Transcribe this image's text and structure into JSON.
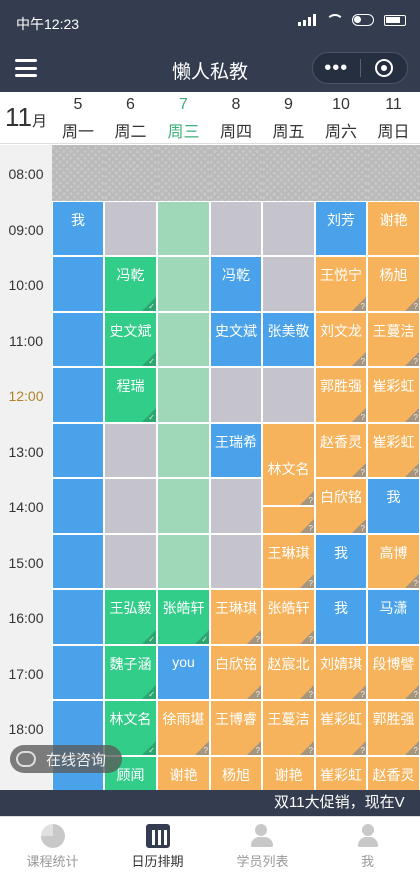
{
  "status": {
    "time": "中午12:23"
  },
  "nav": {
    "title": "懒人私教"
  },
  "header": {
    "month_num": "11",
    "month_unit": "月",
    "days": [
      {
        "num": "5",
        "wd": "周一",
        "today": false
      },
      {
        "num": "6",
        "wd": "周二",
        "today": false
      },
      {
        "num": "7",
        "wd": "周三",
        "today": true
      },
      {
        "num": "8",
        "wd": "周四",
        "today": false
      },
      {
        "num": "9",
        "wd": "周五",
        "today": false
      },
      {
        "num": "10",
        "wd": "周六",
        "today": false
      },
      {
        "num": "11",
        "wd": "周日",
        "today": false
      }
    ]
  },
  "times": [
    "08:00",
    "09:00",
    "10:00",
    "11:00",
    "12:00",
    "13:00",
    "14:00",
    "15:00",
    "16:00",
    "17:00",
    "18:00"
  ],
  "current_time_label": "12:00",
  "colors": {
    "blue": "#4aa3ea",
    "gray": "#c5c3cc",
    "green": "#33cd8a",
    "light_green": "#9fd8b9",
    "orange": "#f7b35b",
    "dark": "#333d4f"
  },
  "schedule": [
    {
      "day": 0,
      "cells": [
        {
          "c": "blue",
          "t": "我"
        },
        {
          "c": "blue"
        },
        {
          "c": "blue"
        },
        {
          "c": "blue"
        },
        {
          "c": "blue"
        },
        {
          "c": "blue"
        },
        {
          "c": "blue"
        },
        {
          "c": "blue"
        },
        {
          "c": "blue"
        },
        {
          "c": "blue"
        },
        {
          "c": "blue"
        }
      ]
    },
    {
      "day": 1,
      "cells": [
        {
          "c": "gray"
        },
        {
          "c": "green",
          "t": "冯乾",
          "m": "ok"
        },
        {
          "c": "green",
          "t": "史文斌",
          "m": "ok"
        },
        {
          "c": "green",
          "t": "程瑞",
          "m": "ok"
        },
        {
          "c": "gray"
        },
        {
          "c": "gray"
        },
        {
          "c": "gray"
        },
        {
          "c": "green",
          "t": "王弘毅",
          "m": "ok"
        },
        {
          "c": "green",
          "t": "魏子涵",
          "m": "ok"
        },
        {
          "c": "green",
          "t": "林文名",
          "m": "ok"
        },
        {
          "c": "green",
          "t": "顾闻",
          "m": "ok"
        }
      ]
    },
    {
      "day": 2,
      "cells": [
        {
          "c": "light_green"
        },
        {
          "c": "light_green"
        },
        {
          "c": "light_green"
        },
        {
          "c": "light_green"
        },
        {
          "c": "light_green"
        },
        {
          "c": "light_green"
        },
        {
          "c": "light_green"
        },
        {
          "c": "green",
          "t": "张皓轩",
          "m": "ok"
        },
        {
          "c": "blue",
          "t": "you"
        },
        {
          "c": "orange",
          "t": "徐雨堪",
          "m": "q"
        },
        {
          "c": "orange",
          "t": "谢艳",
          "m": "q"
        }
      ]
    },
    {
      "day": 3,
      "cells": [
        {
          "c": "gray"
        },
        {
          "c": "blue",
          "t": "冯乾"
        },
        {
          "c": "blue",
          "t": "史文斌"
        },
        {
          "c": "gray"
        },
        {
          "c": "blue",
          "t": "王瑞希"
        },
        {
          "c": "gray"
        },
        {
          "c": "gray"
        },
        {
          "c": "orange",
          "t": "王琳琪",
          "m": "q"
        },
        {
          "c": "orange",
          "t": "白欣铭",
          "m": "q"
        },
        {
          "c": "orange",
          "t": "王博睿",
          "m": "q"
        },
        {
          "c": "orange",
          "t": "杨旭",
          "m": "q"
        }
      ]
    },
    {
      "day": 4,
      "cells": [
        {
          "c": "gray"
        },
        {
          "c": "gray"
        },
        {
          "c": "blue",
          "t": "张美敬"
        },
        {
          "c": "gray"
        },
        {
          "c": "orange",
          "t": "林文名",
          "m": "q",
          "half": true
        },
        {
          "c": "orange",
          "m": "q",
          "halfb": true
        },
        {
          "c": "orange",
          "t": "王琳琪",
          "m": "q"
        },
        {
          "c": "orange",
          "t": "张皓轩",
          "m": "q"
        },
        {
          "c": "orange",
          "t": "赵宸北",
          "m": "q"
        },
        {
          "c": "orange",
          "t": "王蔓洁",
          "m": "q"
        },
        {
          "c": "orange",
          "t": "谢艳",
          "m": "q"
        }
      ]
    },
    {
      "day": 5,
      "cells": [
        {
          "c": "blue",
          "t": "刘芳"
        },
        {
          "c": "orange",
          "t": "王悦宁",
          "m": "q"
        },
        {
          "c": "orange",
          "t": "刘文龙",
          "m": "q"
        },
        {
          "c": "orange",
          "t": "郭胜强",
          "m": "q"
        },
        {
          "c": "orange",
          "t": "赵香灵",
          "m": "q"
        },
        {
          "c": "orange",
          "t": "白欣铭",
          "m": "q"
        },
        {
          "c": "blue",
          "t": "我"
        },
        {
          "c": "blue",
          "t": "我"
        },
        {
          "c": "orange",
          "t": "刘婧琪",
          "m": "q"
        },
        {
          "c": "orange",
          "t": "崔彩虹",
          "m": "q"
        },
        {
          "c": "orange",
          "t": "崔彩虹",
          "m": "q"
        }
      ]
    },
    {
      "day": 6,
      "cells": [
        {
          "c": "orange",
          "t": "谢艳"
        },
        {
          "c": "orange",
          "t": "杨旭",
          "m": "q"
        },
        {
          "c": "orange",
          "t": "王蔓洁",
          "m": "q"
        },
        {
          "c": "orange",
          "t": "崔彩虹",
          "m": "q"
        },
        {
          "c": "orange",
          "t": "崔彩虹",
          "m": "q"
        },
        {
          "c": "blue",
          "t": "我"
        },
        {
          "c": "orange",
          "t": "高博",
          "m": "q"
        },
        {
          "c": "blue",
          "t": "马潇"
        },
        {
          "c": "orange",
          "t": "段博譬",
          "m": "q"
        },
        {
          "c": "orange",
          "t": "郭胜强",
          "m": "q"
        },
        {
          "c": "orange",
          "t": "赵香灵",
          "m": "q"
        }
      ]
    }
  ],
  "consult": {
    "label": "在线咨询"
  },
  "banner": {
    "text": "双11大促销，现在V"
  },
  "tabs": [
    {
      "label": "课程统计",
      "icon": "pie-chart-icon",
      "active": false
    },
    {
      "label": "日历排期",
      "icon": "calendar-icon",
      "active": true
    },
    {
      "label": "学员列表",
      "icon": "users-icon",
      "active": false
    },
    {
      "label": "我",
      "icon": "profile-icon",
      "active": false
    }
  ]
}
